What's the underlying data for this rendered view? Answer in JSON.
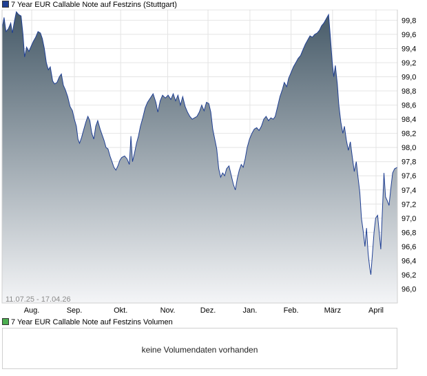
{
  "price_legend": {
    "label": "7 Year EUR Callable Note auf Festzins (Stuttgart)",
    "color": "#1f3f93"
  },
  "volume_legend": {
    "label": "7 Year EUR Callable Note auf Festzins Volumen",
    "color": "#4caf50"
  },
  "volume_panel": {
    "message": "keine Volumendaten vorhanden"
  },
  "chart_data": {
    "type": "area",
    "date_range_label": "11.07.25 - 17.04.26",
    "x_tick_labels": [
      "Aug.",
      "Sep.",
      "Okt.",
      "Nov.",
      "Dez.",
      "Jan.",
      "Feb.",
      "März",
      "April"
    ],
    "y_tick_labels": [
      "99,8",
      "99,6",
      "99,4",
      "99,2",
      "99,0",
      "98,8",
      "98,6",
      "98,4",
      "98,2",
      "98,0",
      "97,8",
      "97,6",
      "97,4",
      "97,2",
      "97,0",
      "96,8",
      "96,6",
      "96,4",
      "96,2",
      "96,0"
    ],
    "ylim": [
      95.8,
      99.95
    ],
    "grid": true,
    "line_color": "#1f3f93",
    "fill_top_color": "#465a68",
    "fill_bottom_color": "#f4f5f7",
    "series": [
      {
        "values": [
          [
            0.0,
            99.68
          ],
          [
            0.005,
            99.84
          ],
          [
            0.01,
            99.64
          ],
          [
            0.016,
            99.68
          ],
          [
            0.022,
            99.76
          ],
          [
            0.026,
            99.62
          ],
          [
            0.031,
            99.78
          ],
          [
            0.036,
            99.92
          ],
          [
            0.042,
            99.88
          ],
          [
            0.048,
            99.86
          ],
          [
            0.053,
            99.6
          ],
          [
            0.057,
            99.28
          ],
          [
            0.062,
            99.42
          ],
          [
            0.068,
            99.36
          ],
          [
            0.074,
            99.44
          ],
          [
            0.079,
            99.5
          ],
          [
            0.085,
            99.56
          ],
          [
            0.091,
            99.64
          ],
          [
            0.097,
            99.62
          ],
          [
            0.102,
            99.54
          ],
          [
            0.107,
            99.4
          ],
          [
            0.112,
            99.2
          ],
          [
            0.117,
            99.1
          ],
          [
            0.122,
            99.14
          ],
          [
            0.128,
            98.94
          ],
          [
            0.133,
            98.9
          ],
          [
            0.139,
            98.92
          ],
          [
            0.145,
            99.0
          ],
          [
            0.15,
            99.04
          ],
          [
            0.155,
            98.88
          ],
          [
            0.16,
            98.82
          ],
          [
            0.166,
            98.72
          ],
          [
            0.172,
            98.58
          ],
          [
            0.178,
            98.52
          ],
          [
            0.183,
            98.4
          ],
          [
            0.188,
            98.3
          ],
          [
            0.192,
            98.12
          ],
          [
            0.196,
            98.06
          ],
          [
            0.201,
            98.14
          ],
          [
            0.206,
            98.24
          ],
          [
            0.212,
            98.36
          ],
          [
            0.217,
            98.44
          ],
          [
            0.222,
            98.38
          ],
          [
            0.227,
            98.2
          ],
          [
            0.232,
            98.12
          ],
          [
            0.237,
            98.3
          ],
          [
            0.242,
            98.38
          ],
          [
            0.248,
            98.26
          ],
          [
            0.253,
            98.18
          ],
          [
            0.258,
            98.1
          ],
          [
            0.263,
            98.0
          ],
          [
            0.268,
            97.98
          ],
          [
            0.273,
            97.88
          ],
          [
            0.278,
            97.8
          ],
          [
            0.283,
            97.72
          ],
          [
            0.288,
            97.68
          ],
          [
            0.293,
            97.74
          ],
          [
            0.298,
            97.82
          ],
          [
            0.303,
            97.86
          ],
          [
            0.31,
            97.88
          ],
          [
            0.316,
            97.84
          ],
          [
            0.322,
            97.76
          ],
          [
            0.326,
            98.16
          ],
          [
            0.33,
            97.8
          ],
          [
            0.335,
            97.92
          ],
          [
            0.34,
            98.06
          ],
          [
            0.345,
            98.16
          ],
          [
            0.35,
            98.3
          ],
          [
            0.356,
            98.42
          ],
          [
            0.362,
            98.56
          ],
          [
            0.368,
            98.64
          ],
          [
            0.375,
            98.7
          ],
          [
            0.382,
            98.76
          ],
          [
            0.389,
            98.64
          ],
          [
            0.394,
            98.5
          ],
          [
            0.4,
            98.66
          ],
          [
            0.406,
            98.74
          ],
          [
            0.413,
            98.7
          ],
          [
            0.42,
            98.74
          ],
          [
            0.427,
            98.68
          ],
          [
            0.433,
            98.76
          ],
          [
            0.439,
            98.66
          ],
          [
            0.445,
            98.74
          ],
          [
            0.451,
            98.6
          ],
          [
            0.457,
            98.72
          ],
          [
            0.463,
            98.58
          ],
          [
            0.469,
            98.5
          ],
          [
            0.475,
            98.44
          ],
          [
            0.481,
            98.4
          ],
          [
            0.487,
            98.42
          ],
          [
            0.493,
            98.44
          ],
          [
            0.499,
            98.5
          ],
          [
            0.505,
            98.6
          ],
          [
            0.511,
            98.52
          ],
          [
            0.517,
            98.64
          ],
          [
            0.523,
            98.62
          ],
          [
            0.528,
            98.5
          ],
          [
            0.533,
            98.26
          ],
          [
            0.538,
            98.12
          ],
          [
            0.543,
            97.98
          ],
          [
            0.548,
            97.7
          ],
          [
            0.553,
            97.58
          ],
          [
            0.558,
            97.64
          ],
          [
            0.563,
            97.6
          ],
          [
            0.568,
            97.7
          ],
          [
            0.574,
            97.74
          ],
          [
            0.58,
            97.6
          ],
          [
            0.585,
            97.48
          ],
          [
            0.59,
            97.4
          ],
          [
            0.595,
            97.56
          ],
          [
            0.6,
            97.68
          ],
          [
            0.605,
            97.76
          ],
          [
            0.61,
            97.72
          ],
          [
            0.615,
            97.84
          ],
          [
            0.62,
            98.0
          ],
          [
            0.626,
            98.12
          ],
          [
            0.632,
            98.2
          ],
          [
            0.638,
            98.26
          ],
          [
            0.644,
            98.28
          ],
          [
            0.65,
            98.24
          ],
          [
            0.656,
            98.3
          ],
          [
            0.662,
            98.4
          ],
          [
            0.668,
            98.44
          ],
          [
            0.674,
            98.38
          ],
          [
            0.68,
            98.42
          ],
          [
            0.686,
            98.4
          ],
          [
            0.691,
            98.44
          ],
          [
            0.697,
            98.58
          ],
          [
            0.703,
            98.72
          ],
          [
            0.709,
            98.82
          ],
          [
            0.714,
            98.92
          ],
          [
            0.72,
            98.86
          ],
          [
            0.725,
            98.98
          ],
          [
            0.731,
            99.06
          ],
          [
            0.737,
            99.14
          ],
          [
            0.743,
            99.2
          ],
          [
            0.749,
            99.26
          ],
          [
            0.755,
            99.3
          ],
          [
            0.761,
            99.38
          ],
          [
            0.767,
            99.46
          ],
          [
            0.773,
            99.52
          ],
          [
            0.779,
            99.58
          ],
          [
            0.785,
            99.56
          ],
          [
            0.791,
            99.6
          ],
          [
            0.797,
            99.62
          ],
          [
            0.803,
            99.66
          ],
          [
            0.808,
            99.72
          ],
          [
            0.814,
            99.76
          ],
          [
            0.82,
            99.82
          ],
          [
            0.826,
            99.88
          ],
          [
            0.83,
            99.6
          ],
          [
            0.835,
            99.22
          ],
          [
            0.839,
            99.0
          ],
          [
            0.843,
            99.16
          ],
          [
            0.848,
            98.9
          ],
          [
            0.852,
            98.6
          ],
          [
            0.857,
            98.36
          ],
          [
            0.862,
            98.2
          ],
          [
            0.866,
            98.3
          ],
          [
            0.871,
            98.1
          ],
          [
            0.876,
            97.96
          ],
          [
            0.881,
            98.08
          ],
          [
            0.886,
            97.86
          ],
          [
            0.891,
            97.66
          ],
          [
            0.896,
            97.8
          ],
          [
            0.9,
            97.6
          ],
          [
            0.905,
            97.36
          ],
          [
            0.909,
            97.0
          ],
          [
            0.914,
            96.8
          ],
          [
            0.918,
            96.6
          ],
          [
            0.922,
            96.86
          ],
          [
            0.926,
            96.5
          ],
          [
            0.93,
            96.3
          ],
          [
            0.933,
            96.2
          ],
          [
            0.937,
            96.5
          ],
          [
            0.941,
            96.8
          ],
          [
            0.945,
            97.0
          ],
          [
            0.95,
            97.04
          ],
          [
            0.954,
            96.8
          ],
          [
            0.958,
            96.56
          ],
          [
            0.962,
            97.1
          ],
          [
            0.966,
            97.64
          ],
          [
            0.97,
            97.3
          ],
          [
            0.975,
            97.24
          ],
          [
            0.979,
            97.18
          ],
          [
            0.983,
            97.4
          ],
          [
            0.988,
            97.64
          ],
          [
            0.993,
            97.7
          ],
          [
            1.0,
            97.72
          ]
        ]
      }
    ]
  }
}
